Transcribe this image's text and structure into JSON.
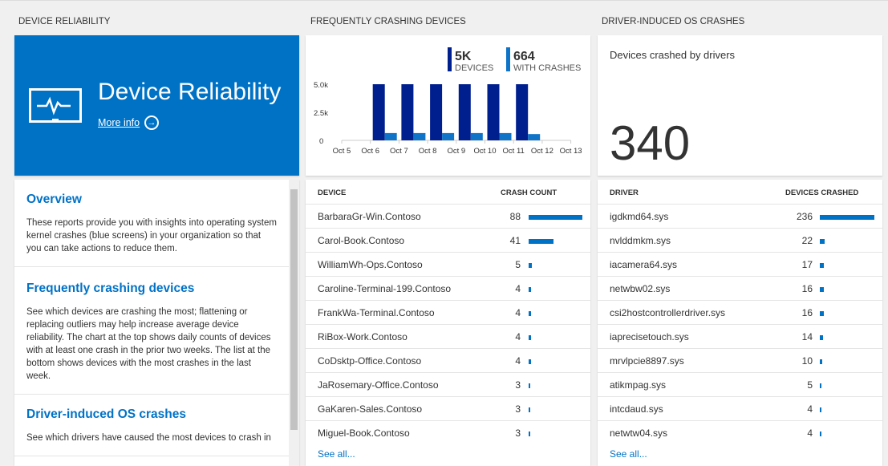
{
  "sections": {
    "reliability": "DEVICE RELIABILITY",
    "crashing": "FREQUENTLY CRASHING DEVICES",
    "driver": "DRIVER-INDUCED OS CRASHES"
  },
  "hero": {
    "title": "Device Reliability",
    "more_info": "More info",
    "icon": "monitor-pulse-icon",
    "color": "#0072c6"
  },
  "overview": [
    {
      "title": "Overview",
      "text": "These reports provide you with insights into operating system kernel crashes (blue screens) in your organization so that you can take actions to reduce them."
    },
    {
      "title": "Frequently crashing devices",
      "text": "See which devices are crashing the most; flattening or replacing outliers may help increase average device reliability. The chart at the top shows daily counts of devices with at least one crash in the prior two weeks. The list at the bottom shows devices with the most crashes in the last week."
    },
    {
      "title": "Driver-induced OS crashes",
      "text": "See which drivers have caused the most devices to crash in"
    }
  ],
  "chart_data": {
    "type": "bar",
    "categories": [
      "Oct 5",
      "Oct 6",
      "Oct 7",
      "Oct 8",
      "Oct 9",
      "Oct 10",
      "Oct 11",
      "Oct 12",
      "Oct 13"
    ],
    "series": [
      {
        "name": "DEVICES",
        "total": "5K",
        "color": "#001f8f",
        "values": [
          0,
          5000,
          5000,
          5000,
          5000,
          5000,
          5000,
          0,
          0
        ]
      },
      {
        "name": "WITH CRASHES",
        "total": "664",
        "color": "#0f74c8",
        "values": [
          0,
          650,
          650,
          650,
          650,
          650,
          560,
          0,
          0
        ]
      }
    ],
    "yticks": [
      "0",
      "2.5k",
      "5.0k"
    ],
    "ylim": [
      0,
      5000
    ]
  },
  "driver_summary": {
    "label": "Devices crashed by drivers",
    "value": "340"
  },
  "devices": {
    "headers": [
      "DEVICE",
      "CRASH COUNT"
    ],
    "rows": [
      [
        "BarbaraGr-Win.Contoso",
        88
      ],
      [
        "Carol-Book.Contoso",
        41
      ],
      [
        "WilliamWh-Ops.Contoso",
        5
      ],
      [
        "Caroline-Terminal-199.Contoso",
        4
      ],
      [
        "FrankWa-Terminal.Contoso",
        4
      ],
      [
        "RiBox-Work.Contoso",
        4
      ],
      [
        "CoDsktp-Office.Contoso",
        4
      ],
      [
        "JaRosemary-Office.Contoso",
        3
      ],
      [
        "GaKaren-Sales.Contoso",
        3
      ],
      [
        "Miguel-Book.Contoso",
        3
      ]
    ],
    "see_all": "See all..."
  },
  "drivers": {
    "headers": [
      "DRIVER",
      "DEVICES CRASHED"
    ],
    "rows": [
      [
        "igdkmd64.sys",
        236
      ],
      [
        "nvlddmkm.sys",
        22
      ],
      [
        "iacamera64.sys",
        17
      ],
      [
        "netwbw02.sys",
        16
      ],
      [
        "csi2hostcontrollerdriver.sys",
        16
      ],
      [
        "iaprecisetouch.sys",
        14
      ],
      [
        "mrvlpcie8897.sys",
        10
      ],
      [
        "atikmpag.sys",
        5
      ],
      [
        "intcdaud.sys",
        4
      ],
      [
        "netwtw04.sys",
        4
      ]
    ],
    "see_all": "See all..."
  }
}
